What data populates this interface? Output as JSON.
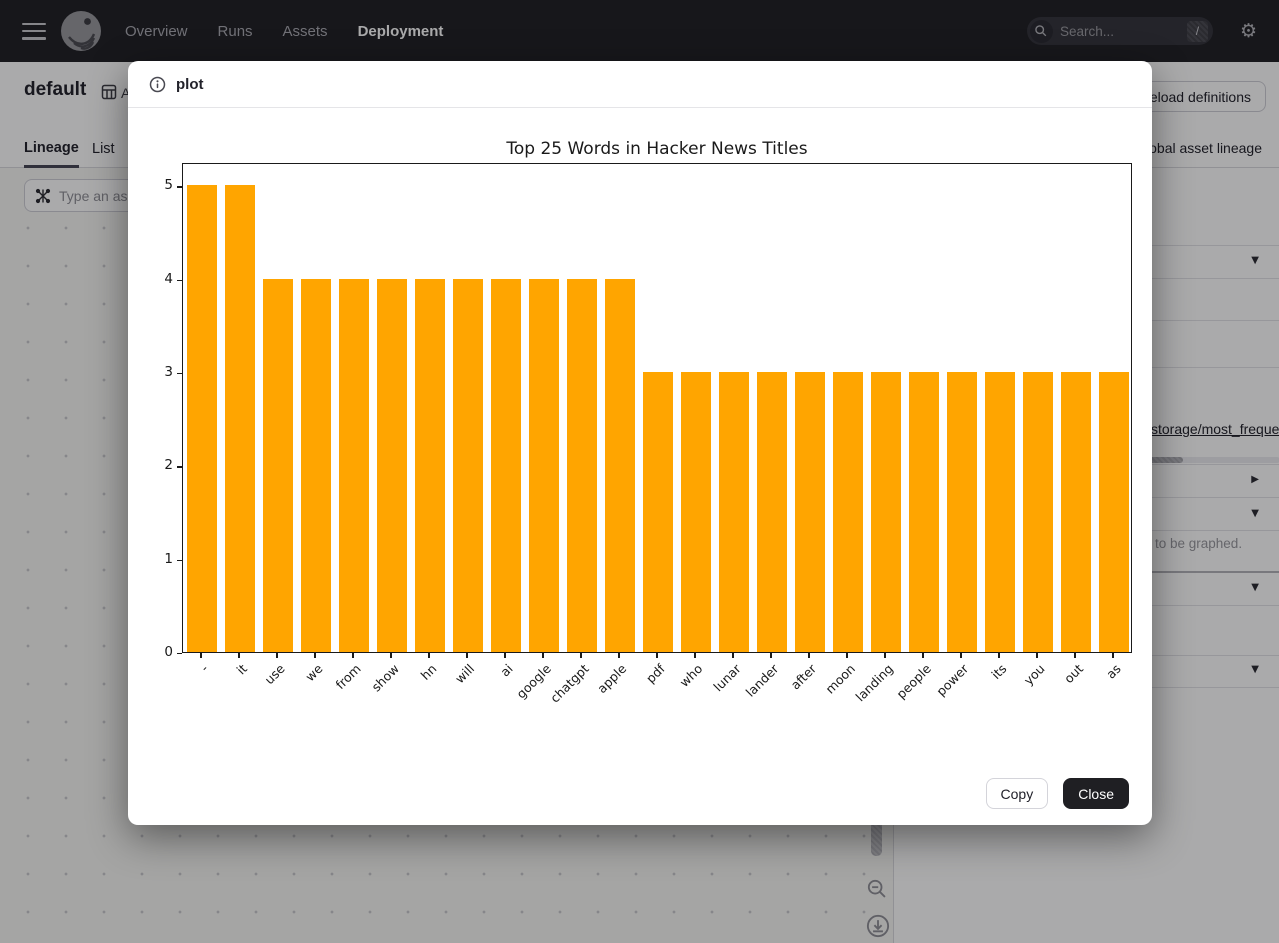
{
  "navbar": {
    "items": [
      {
        "label": "Overview",
        "active": false
      },
      {
        "label": "Runs",
        "active": false
      },
      {
        "label": "Assets",
        "active": false
      },
      {
        "label": "Deployment",
        "active": true
      }
    ],
    "search": {
      "placeholder": "Search...",
      "shortcut": "/"
    }
  },
  "page": {
    "title": "default",
    "title_suffix": "A",
    "reload_button": "Reload definitions",
    "tabs": [
      {
        "label": "Lineage",
        "active": true
      },
      {
        "label": "List",
        "active": false
      }
    ],
    "global_lineage_link": "Global asset lineage",
    "asset_input_placeholder": "Type an asset subset",
    "right_panel": {
      "link": "storage/most_frequent_words",
      "note": "to be graphed."
    }
  },
  "modal": {
    "title": "plot",
    "copy_label": "Copy",
    "close_label": "Close"
  },
  "icons": {
    "chevron_down": "▼",
    "triangle_right": "▶",
    "gear": "⚙"
  },
  "chart_data": {
    "type": "bar",
    "title": "Top 25 Words in Hacker News Titles",
    "categories": [
      "-",
      "it",
      "use",
      "we",
      "from",
      "show",
      "hn",
      "will",
      "ai",
      "google",
      "chatgpt",
      "apple",
      "pdf",
      "who",
      "lunar",
      "lander",
      "after",
      "moon",
      "landing",
      "people",
      "power",
      "its",
      "you",
      "out",
      "as"
    ],
    "values": [
      5,
      5,
      4,
      4,
      4,
      4,
      4,
      4,
      4,
      4,
      4,
      4,
      3,
      3,
      3,
      3,
      3,
      3,
      3,
      3,
      3,
      3,
      3,
      3,
      3
    ],
    "xlabel": "",
    "ylabel": "",
    "ylim": [
      0,
      5.25
    ],
    "yticks": [
      0,
      1,
      2,
      3,
      4,
      5
    ],
    "grid": false,
    "legend": false,
    "bar_color": "#FFA500",
    "x_label_rotation": 45
  }
}
